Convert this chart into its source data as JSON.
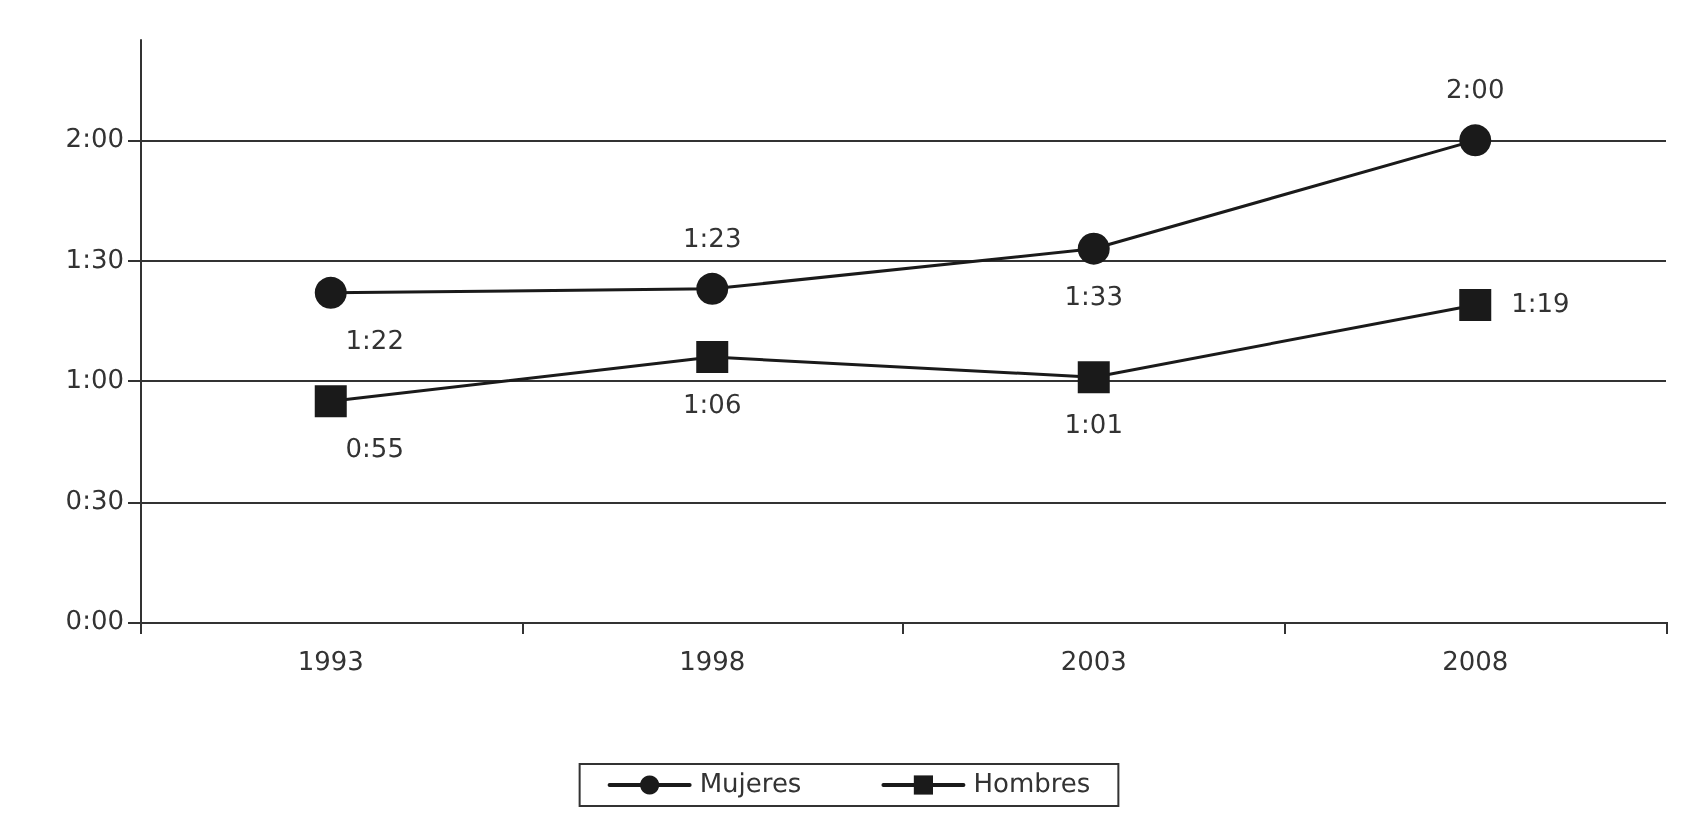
{
  "chart_data": {
    "type": "line",
    "categories": [
      "1993",
      "1998",
      "2003",
      "2008"
    ],
    "series": [
      {
        "name": "Mujeres",
        "color": "#1a1a1a",
        "marker": "circle",
        "values": [
          82,
          83,
          93,
          120
        ],
        "value_labels": [
          "1:22",
          "1:23",
          "1:33",
          "2:00"
        ]
      },
      {
        "name": "Hombres",
        "color": "#1a1a1a",
        "marker": "square",
        "values": [
          55,
          66,
          61,
          79
        ],
        "value_labels": [
          "0:55",
          "1:06",
          "1:01",
          "1:19"
        ]
      }
    ],
    "ylim": [
      0,
      145
    ],
    "yticks": [
      {
        "value": 0,
        "label": "0:00"
      },
      {
        "value": 30,
        "label": "0:30"
      },
      {
        "value": 60,
        "label": "1:00"
      },
      {
        "value": 90,
        "label": "1:30"
      },
      {
        "value": 120,
        "label": "2:00"
      }
    ],
    "grid": "y",
    "legend": "bottom",
    "line_style": "solid"
  }
}
